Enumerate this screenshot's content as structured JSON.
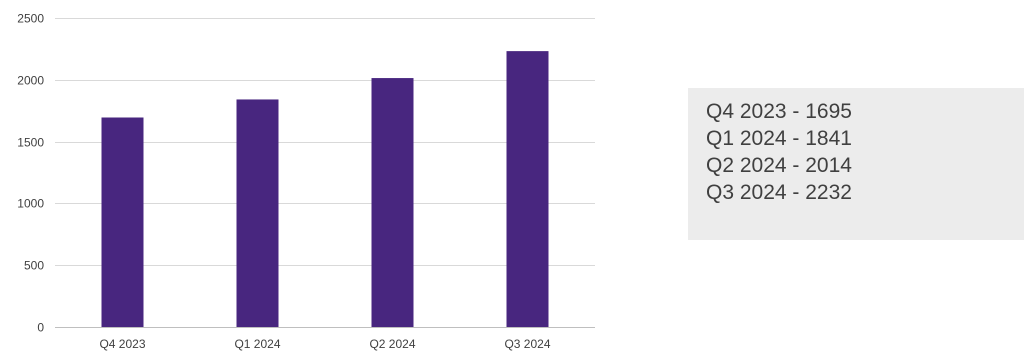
{
  "chart_data": {
    "type": "bar",
    "categories": [
      "Q4 2023",
      "Q1 2024",
      "Q2 2024",
      "Q3 2024"
    ],
    "values": [
      1695,
      1841,
      2014,
      2232
    ],
    "ylim": [
      0,
      2500
    ],
    "yticks": [
      0,
      500,
      1000,
      1500,
      2000,
      2500
    ],
    "grid": true,
    "bar_color": "#48267f",
    "title": "",
    "xlabel": "",
    "ylabel": ""
  },
  "summary_box": {
    "lines": [
      "Q4 2023 - 1695",
      "Q1 2024 - 1841",
      "Q2 2024 - 2014",
      "Q3 2024 - 2232"
    ],
    "background": "#ececec"
  }
}
